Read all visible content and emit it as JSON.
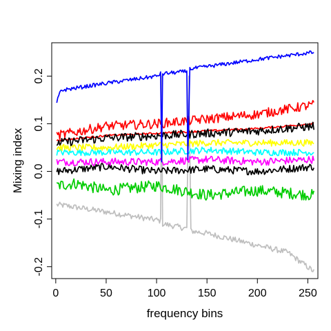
{
  "chart_data": {
    "type": "line",
    "title": "",
    "xlabel": "frequency bins",
    "ylabel": "Mixing index",
    "xlim": [
      -4,
      260
    ],
    "ylim": [
      -0.225,
      0.27
    ],
    "xticks": [
      0,
      50,
      100,
      150,
      200,
      250
    ],
    "yticks": [
      -0.2,
      -0.1,
      0.0,
      0.1,
      0.2
    ],
    "xtick_labels": [
      "0",
      "50",
      "100",
      "150",
      "200",
      "250"
    ],
    "ytick_labels": [
      "-0.2",
      "-0.1",
      "0.0",
      "0.1",
      "0.2"
    ],
    "grid": false,
    "legend": "none",
    "n_points": 256,
    "series": [
      {
        "color": "#bebebe",
        "points": [
          [
            1,
            -0.07
          ],
          [
            10,
            -0.072
          ],
          [
            50,
            -0.085
          ],
          [
            100,
            -0.102
          ],
          [
            104,
            -0.104
          ],
          [
            105,
            0.2
          ],
          [
            106,
            -0.11
          ],
          [
            130,
            -0.12
          ],
          [
            132,
            0.2
          ],
          [
            134,
            -0.125
          ],
          [
            150,
            -0.13
          ],
          [
            200,
            -0.155
          ],
          [
            230,
            -0.17
          ],
          [
            256,
            -0.21
          ]
        ],
        "noise": 0.006
      },
      {
        "color": "#00cc00",
        "points": [
          [
            1,
            -0.03
          ],
          [
            20,
            -0.025
          ],
          [
            50,
            -0.04
          ],
          [
            100,
            -0.03
          ],
          [
            150,
            -0.05
          ],
          [
            200,
            -0.04
          ],
          [
            256,
            -0.05
          ]
        ],
        "noise": 0.012
      },
      {
        "color": "#000000",
        "points": [
          [
            1,
            0.0
          ],
          [
            50,
            0.01
          ],
          [
            100,
            0.0
          ],
          [
            150,
            0.005
          ],
          [
            200,
            0.0
          ],
          [
            256,
            0.01
          ]
        ],
        "noise": 0.008
      },
      {
        "color": "#ff00ff",
        "points": [
          [
            1,
            0.02
          ],
          [
            50,
            0.02
          ],
          [
            100,
            0.02
          ],
          [
            150,
            0.025
          ],
          [
            200,
            0.02
          ],
          [
            256,
            0.025
          ]
        ],
        "noise": 0.008
      },
      {
        "color": "#00ffff",
        "points": [
          [
            1,
            0.04
          ],
          [
            50,
            0.04
          ],
          [
            100,
            0.04
          ],
          [
            150,
            0.045
          ],
          [
            200,
            0.04
          ],
          [
            256,
            0.04
          ]
        ],
        "noise": 0.007
      },
      {
        "color": "#ffff00",
        "points": [
          [
            1,
            0.05
          ],
          [
            50,
            0.05
          ],
          [
            100,
            0.055
          ],
          [
            150,
            0.06
          ],
          [
            200,
            0.06
          ],
          [
            256,
            0.06
          ]
        ],
        "noise": 0.007
      },
      {
        "color": "#ff0000",
        "points": [
          [
            1,
            0.065
          ],
          [
            50,
            0.075
          ],
          [
            100,
            0.08
          ],
          [
            150,
            0.085
          ],
          [
            200,
            0.09
          ],
          [
            256,
            0.1
          ]
        ],
        "noise": 0.002
      },
      {
        "color": "#000000",
        "points": [
          [
            1,
            0.06
          ],
          [
            50,
            0.07
          ],
          [
            100,
            0.075
          ],
          [
            150,
            0.08
          ],
          [
            200,
            0.085
          ],
          [
            256,
            0.095
          ]
        ],
        "noise": 0.009
      },
      {
        "color": "#ff0000",
        "points": [
          [
            1,
            0.075
          ],
          [
            50,
            0.095
          ],
          [
            100,
            0.1
          ],
          [
            150,
            0.11
          ],
          [
            200,
            0.12
          ],
          [
            256,
            0.14
          ]
        ],
        "noise": 0.01
      },
      {
        "color": "#0000ff",
        "points": [
          [
            1,
            0.145
          ],
          [
            5,
            0.17
          ],
          [
            50,
            0.185
          ],
          [
            100,
            0.2
          ],
          [
            104,
            0.205
          ],
          [
            105,
            0.02
          ],
          [
            106,
            0.205
          ],
          [
            130,
            0.21
          ],
          [
            131,
            0.025
          ],
          [
            133,
            0.215
          ],
          [
            150,
            0.22
          ],
          [
            200,
            0.235
          ],
          [
            256,
            0.25
          ]
        ],
        "noise": 0.004
      }
    ]
  }
}
